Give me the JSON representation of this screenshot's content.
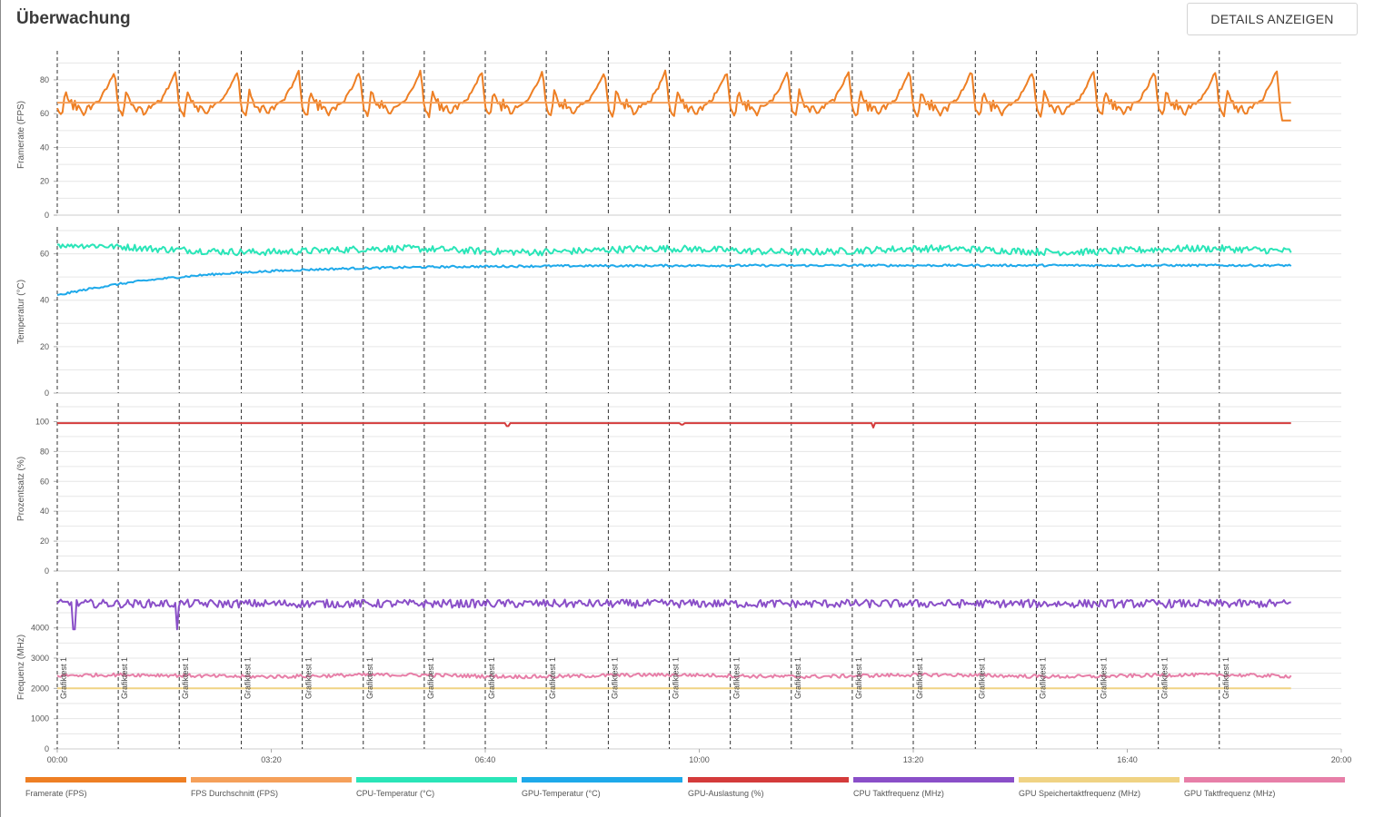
{
  "header": {
    "title": "Überwachung",
    "details_button": "DETAILS ANZEIGEN"
  },
  "colors": {
    "framerate": "#ee7f24",
    "fps_avg": "#f5a05a",
    "cpu_temp": "#2ae5b8",
    "gpu_temp": "#1ea9ea",
    "gpu_util": "#d43b3b",
    "cpu_clock": "#8a4fc8",
    "gpu_mem_clock": "#f0d384",
    "gpu_clock": "#e77fa8",
    "grid": "#e6e6e6",
    "marker": "#333333"
  },
  "chart_data": {
    "type": "line",
    "x_unit": "mm:ss",
    "xlim": [
      "00:00",
      "20:00"
    ],
    "x_ticks": [
      "00:00",
      "03:20",
      "06:40",
      "10:00",
      "13:20",
      "16:40",
      "20:00"
    ],
    "data_end": "19:13",
    "markers": {
      "label": "Grafiktest 1",
      "times": [
        "00:00",
        "00:57",
        "01:54",
        "02:52",
        "03:49",
        "04:46",
        "05:43",
        "06:40",
        "07:37",
        "08:35",
        "09:32",
        "10:29",
        "11:26",
        "12:23",
        "13:20",
        "14:18",
        "15:15",
        "16:12",
        "17:09",
        "18:06"
      ]
    },
    "panels": [
      {
        "ylabel": "Framerate (FPS)",
        "ylim": [
          0,
          95
        ],
        "yticks": [
          0,
          20,
          40,
          60,
          80
        ],
        "series": [
          {
            "name": "Framerate (FPS)",
            "color_key": "framerate",
            "pattern": "fps",
            "min": 56,
            "max": 88
          },
          {
            "name": "FPS Durchschnitt (FPS)",
            "color_key": "fps_avg",
            "pattern": "flat",
            "value": 66.5
          }
        ]
      },
      {
        "ylabel": "Temperatur (°C)",
        "ylim": [
          0,
          70
        ],
        "yticks": [
          0,
          20,
          40,
          60
        ],
        "series": [
          {
            "name": "CPU-Temperatur (°C)",
            "color_key": "cpu_temp",
            "pattern": "noisy",
            "value": 61.5,
            "start": 64,
            "range": [
              59,
              64
            ]
          },
          {
            "name": "GPU-Temperatur (°C)",
            "color_key": "gpu_temp",
            "pattern": "warmup",
            "start": 42,
            "value": 55,
            "range": [
              42,
              56
            ]
          }
        ]
      },
      {
        "ylabel": "Prozentsatz (%)",
        "ylim": [
          0,
          110
        ],
        "yticks": [
          0,
          20,
          40,
          60,
          80,
          100
        ],
        "series": [
          {
            "name": "GPU-Auslastung (%)",
            "color_key": "gpu_util",
            "pattern": "flat_dips",
            "value": 99,
            "dips": [
              [
                "07:01",
                97
              ],
              [
                "09:44",
                98
              ],
              [
                "12:43",
                96
              ]
            ]
          }
        ]
      },
      {
        "ylabel": "Frequenz (MHz)",
        "ylim": [
          0,
          5400
        ],
        "yticks": [
          0,
          1000,
          2000,
          3000,
          4000
        ],
        "series": [
          {
            "name": "CPU Taktfrequenz (MHz)",
            "color_key": "cpu_clock",
            "pattern": "noisy_dips",
            "value": 4800,
            "range": [
              4650,
              4950
            ],
            "dips": [
              [
                "00:16",
                3950
              ],
              [
                "01:52",
                3950
              ]
            ]
          },
          {
            "name": "GPU Speichertaktfrequenz (MHz)",
            "color_key": "gpu_mem_clock",
            "pattern": "flat",
            "value": 2000
          },
          {
            "name": "GPU Taktfrequenz (MHz)",
            "color_key": "gpu_clock",
            "pattern": "noisy",
            "value": 2420,
            "range": [
              2300,
              2500
            ]
          }
        ]
      }
    ],
    "legend": {
      "position": "bottom",
      "items": [
        {
          "name": "Framerate (FPS)",
          "color_key": "framerate"
        },
        {
          "name": "FPS Durchschnitt (FPS)",
          "color_key": "fps_avg"
        },
        {
          "name": "CPU-Temperatur (°C)",
          "color_key": "cpu_temp"
        },
        {
          "name": "GPU-Temperatur (°C)",
          "color_key": "gpu_temp"
        },
        {
          "name": "GPU-Auslastung (%)",
          "color_key": "gpu_util"
        },
        {
          "name": "CPU Taktfrequenz (MHz)",
          "color_key": "cpu_clock"
        },
        {
          "name": "GPU Speichertaktfrequenz (MHz)",
          "color_key": "gpu_mem_clock"
        },
        {
          "name": "GPU Taktfrequenz (MHz)",
          "color_key": "gpu_clock"
        }
      ]
    }
  }
}
